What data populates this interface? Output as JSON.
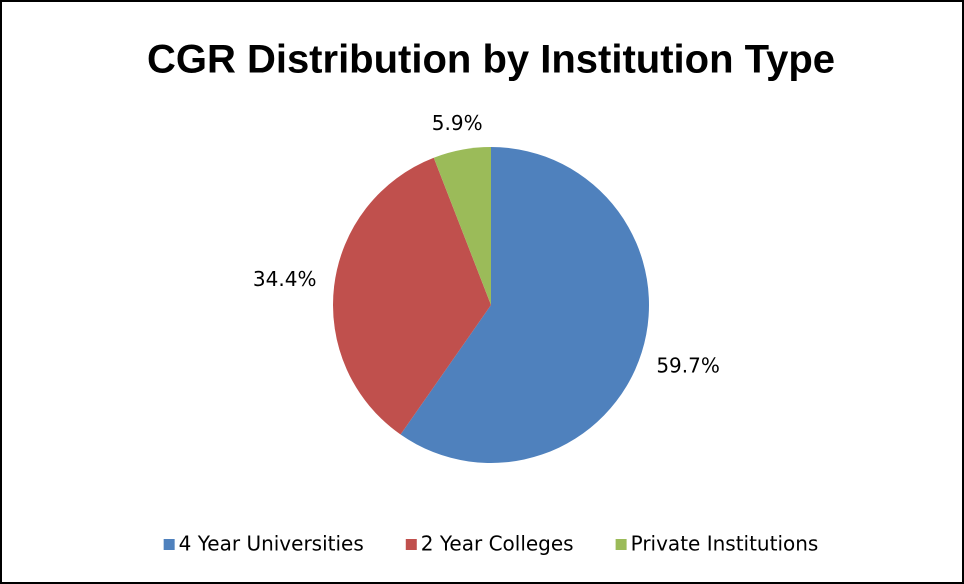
{
  "chart_data": {
    "type": "pie",
    "title": "CGR Distribution by Institution Type",
    "categories": [
      "4 Year Universities",
      "2 Year Colleges",
      "Private Institutions"
    ],
    "values": [
      59.7,
      34.4,
      5.9
    ],
    "value_labels": [
      "59.7%",
      "34.4%",
      "5.9%"
    ],
    "colors": [
      "#4f81bd",
      "#c0504d",
      "#9bbb59"
    ],
    "legend": "bottom"
  }
}
